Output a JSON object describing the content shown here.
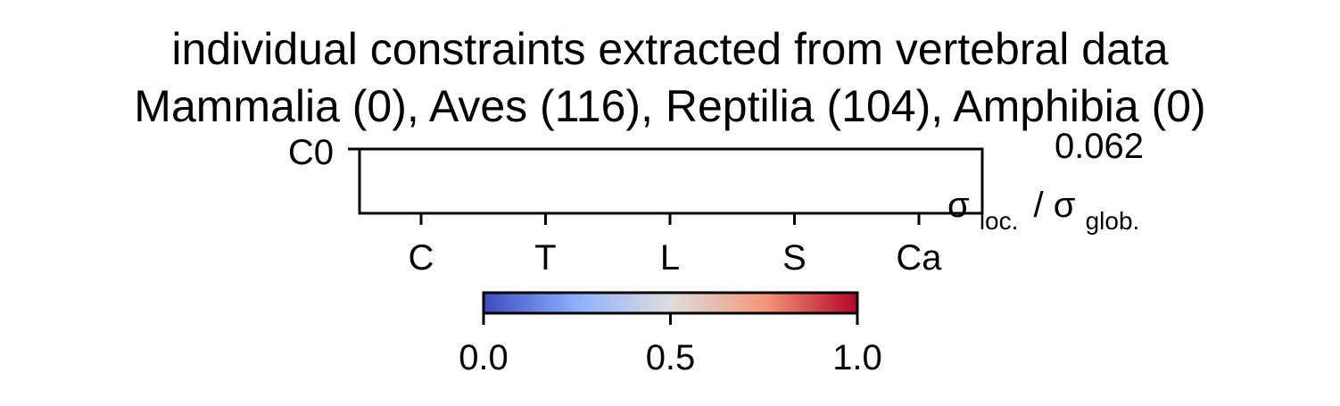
{
  "chart_data": {
    "type": "heatmap",
    "title_line1": "individual constraints extracted from vertebral data",
    "title_line2": "Mammalia (0), Aves (116), Reptilia (104), Amphibia (0)",
    "rows": [
      "C0"
    ],
    "columns": [
      "C",
      "T",
      "L",
      "S",
      "Ca"
    ],
    "values": [
      [
        null,
        null,
        null,
        null,
        null
      ]
    ],
    "annotation_value": "0.062",
    "ratio_label": {
      "sym1": "σ",
      "sub1": "loc.",
      "sep": "/",
      "sym2": "σ",
      "sub2": "glob."
    },
    "colorbar": {
      "colormap": "coolwarm",
      "colors": [
        "#3b4cc0",
        "#8db0fe",
        "#dddddd",
        "#f4987a",
        "#b40426"
      ],
      "range": [
        0.0,
        1.0
      ],
      "ticks": [
        "0.0",
        "0.5",
        "1.0"
      ]
    }
  }
}
